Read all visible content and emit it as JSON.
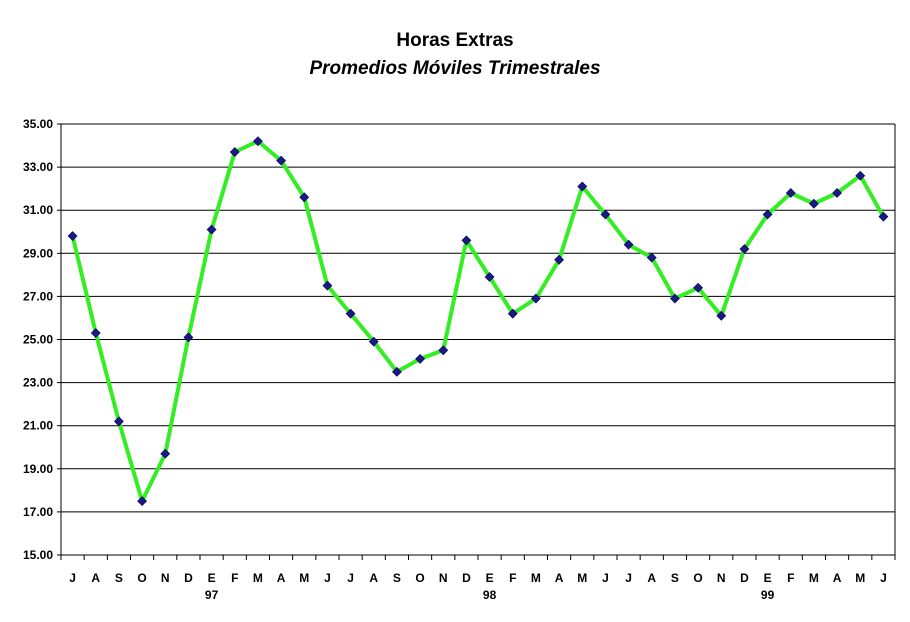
{
  "chart_data": {
    "type": "line",
    "title": "Horas Extras",
    "subtitle": "Promedios Móviles Trimestrales",
    "xlabel": "",
    "ylabel": "",
    "ylim": [
      15,
      35
    ],
    "yticks": [
      "15.00",
      "17.00",
      "19.00",
      "21.00",
      "23.00",
      "25.00",
      "27.00",
      "29.00",
      "31.00",
      "33.00",
      "35.00"
    ],
    "grid": true,
    "categories": [
      "J",
      "A",
      "S",
      "O",
      "N",
      "D",
      "E",
      "F",
      "M",
      "A",
      "M",
      "J",
      "J",
      "A",
      "S",
      "O",
      "N",
      "D",
      "E",
      "F",
      "M",
      "A",
      "M",
      "J",
      "J",
      "A",
      "S",
      "O",
      "N",
      "D",
      "E",
      "F",
      "M",
      "A",
      "M",
      "J"
    ],
    "year_labels": [
      {
        "index": 6,
        "label": "97"
      },
      {
        "index": 18,
        "label": "98"
      },
      {
        "index": 30,
        "label": "99"
      }
    ],
    "series": [
      {
        "line_color": "#33ee22",
        "marker_color": "#1a1a80",
        "values": [
          29.8,
          25.3,
          21.2,
          17.5,
          19.7,
          25.1,
          30.1,
          33.7,
          34.2,
          33.3,
          31.6,
          27.5,
          26.2,
          24.9,
          23.5,
          24.1,
          24.5,
          29.6,
          27.9,
          26.2,
          26.9,
          28.7,
          32.1,
          30.8,
          29.4,
          28.8,
          26.9,
          27.4,
          26.1,
          29.2,
          30.8,
          31.8,
          31.3,
          31.8,
          32.6,
          30.7
        ]
      }
    ]
  }
}
